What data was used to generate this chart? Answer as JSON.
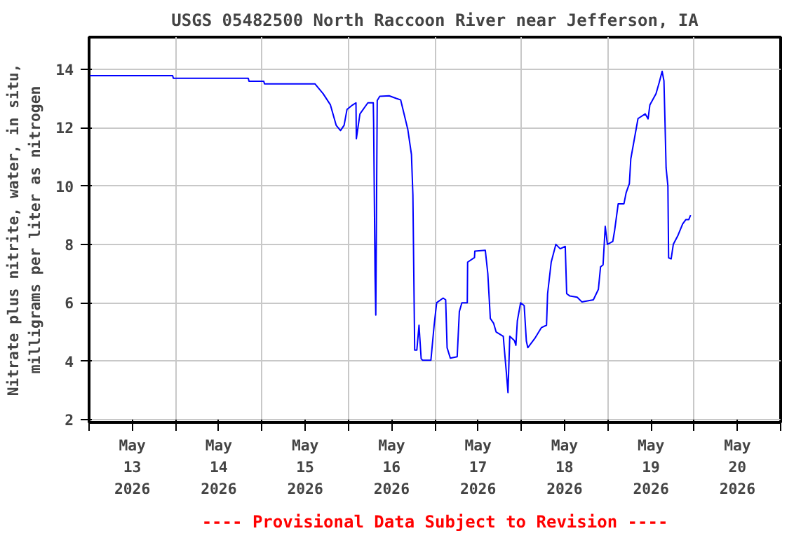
{
  "chart_data": {
    "type": "line",
    "title": "USGS 05482500 North Raccoon River near Jefferson, IA",
    "ylabel": "Nitrate plus nitrite, water, in situ,\nmilligrams per liter as nitrogen",
    "annotations": [
      "---- Provisional Data Subject to Revision ----"
    ],
    "xlim": [
      "2026-05-13T00:00",
      "2026-05-21T00:00"
    ],
    "ylim": [
      1.9,
      15.1
    ],
    "xticks": [
      {
        "value": "2026-05-13T00:00",
        "label": null
      },
      {
        "value": "2026-05-14T00:00",
        "label": null
      },
      {
        "value": "2026-05-15T00:00",
        "label": null
      },
      {
        "value": "2026-05-16T00:00",
        "label": null
      },
      {
        "value": "2026-05-17T00:00",
        "label": null
      },
      {
        "value": "2026-05-18T00:00",
        "label": null
      },
      {
        "value": "2026-05-19T00:00",
        "label": null
      },
      {
        "value": "2026-05-20T00:00",
        "label": null
      },
      {
        "value": "2026-05-21T00:00",
        "label": null
      },
      {
        "value": "2026-05-13T12:00",
        "label": "May\n13\n2026"
      },
      {
        "value": "2026-05-14T12:00",
        "label": "May\n14\n2026"
      },
      {
        "value": "2026-05-15T12:00",
        "label": "May\n15\n2026"
      },
      {
        "value": "2026-05-16T12:00",
        "label": "May\n16\n2026"
      },
      {
        "value": "2026-05-17T12:00",
        "label": "May\n17\n2026"
      },
      {
        "value": "2026-05-18T12:00",
        "label": "May\n18\n2026"
      },
      {
        "value": "2026-05-19T12:00",
        "label": "May\n19\n2026"
      },
      {
        "value": "2026-05-20T12:00",
        "label": "May\n20\n2026"
      }
    ],
    "yticks": [
      2,
      4,
      6,
      8,
      10,
      12,
      14
    ],
    "grid": true,
    "marker": "none",
    "line_style": "solid",
    "series": [
      {
        "color": "#0000ff",
        "x": [
          "2026-05-13T00:15",
          "2026-05-13T23:12",
          "2026-05-13T23:24",
          "2026-05-14T20:12",
          "2026-05-14T20:24",
          "2026-05-15T00:30",
          "2026-05-15T00:42",
          "2026-05-15T14:42",
          "2026-05-15T17:00",
          "2026-05-15T19:00",
          "2026-05-15T20:36",
          "2026-05-15T21:48",
          "2026-05-15T22:48",
          "2026-05-15T23:36",
          "2026-05-16T01:06",
          "2026-05-16T02:06",
          "2026-05-16T02:12",
          "2026-05-16T03:12",
          "2026-05-16T05:24",
          "2026-05-16T06:54",
          "2026-05-16T07:00",
          "2026-05-16T07:24",
          "2026-05-16T07:36",
          "2026-05-16T08:00",
          "2026-05-16T08:42",
          "2026-05-16T11:18",
          "2026-05-16T13:18",
          "2026-05-16T14:30",
          "2026-05-16T16:30",
          "2026-05-16T17:30",
          "2026-05-16T17:54",
          "2026-05-16T18:24",
          "2026-05-16T19:00",
          "2026-05-16T19:36",
          "2026-05-16T20:12",
          "2026-05-16T20:36",
          "2026-05-16T22:54",
          "2026-05-16T23:48",
          "2026-05-17T00:30",
          "2026-05-17T02:18",
          "2026-05-17T03:00",
          "2026-05-17T03:24",
          "2026-05-17T04:18",
          "2026-05-17T06:12",
          "2026-05-17T06:48",
          "2026-05-17T07:30",
          "2026-05-17T09:00",
          "2026-05-17T09:06",
          "2026-05-17T11:00",
          "2026-05-17T11:06",
          "2026-05-17T14:00",
          "2026-05-17T14:42",
          "2026-05-17T15:24",
          "2026-05-17T16:18",
          "2026-05-17T17:00",
          "2026-05-17T19:00",
          "2026-05-17T19:12",
          "2026-05-17T19:54",
          "2026-05-17T20:18",
          "2026-05-17T20:48",
          "2026-05-17T22:06",
          "2026-05-17T22:30",
          "2026-05-17T22:54",
          "2026-05-17T23:48",
          "2026-05-18T00:48",
          "2026-05-18T01:24",
          "2026-05-18T01:48",
          "2026-05-18T03:42",
          "2026-05-18T05:36",
          "2026-05-18T07:00",
          "2026-05-18T07:18",
          "2026-05-18T08:18",
          "2026-05-18T09:36",
          "2026-05-18T10:48",
          "2026-05-18T12:12",
          "2026-05-18T12:36",
          "2026-05-18T13:30",
          "2026-05-18T15:30",
          "2026-05-18T16:48",
          "2026-05-18T20:00",
          "2026-05-18T21:24",
          "2026-05-18T22:00",
          "2026-05-18T22:42",
          "2026-05-18T23:18",
          "2026-05-18T23:54",
          "2026-05-19T01:24",
          "2026-05-19T01:54",
          "2026-05-19T02:54",
          "2026-05-19T04:30",
          "2026-05-19T05:06",
          "2026-05-19T06:00",
          "2026-05-19T06:24",
          "2026-05-19T07:24",
          "2026-05-19T08:24",
          "2026-05-19T10:24",
          "2026-05-19T11:12",
          "2026-05-19T11:42",
          "2026-05-19T13:24",
          "2026-05-19T14:18",
          "2026-05-19T15:06",
          "2026-05-19T15:36",
          "2026-05-19T15:54",
          "2026-05-19T16:12",
          "2026-05-19T16:42",
          "2026-05-19T16:54",
          "2026-05-19T17:36",
          "2026-05-19T18:12",
          "2026-05-19T19:30",
          "2026-05-19T20:48",
          "2026-05-19T21:42",
          "2026-05-19T22:30",
          "2026-05-19T23:00"
        ],
        "values": [
          13.78,
          13.78,
          13.69,
          13.69,
          13.59,
          13.59,
          13.5,
          13.5,
          13.16,
          12.78,
          12.08,
          11.9,
          12.08,
          12.62,
          12.77,
          12.85,
          11.62,
          12.47,
          12.85,
          12.85,
          12.19,
          6.92,
          5.58,
          12.93,
          13.07,
          13.09,
          13.0,
          12.95,
          11.93,
          11.08,
          9.7,
          4.38,
          4.38,
          5.23,
          4.08,
          4.03,
          4.03,
          5.23,
          6.0,
          6.16,
          6.1,
          4.46,
          4.1,
          4.15,
          5.7,
          6.0,
          6.0,
          7.39,
          7.55,
          7.77,
          7.8,
          7.0,
          5.46,
          5.3,
          5.0,
          4.85,
          4.54,
          3.54,
          2.92,
          4.85,
          4.7,
          4.54,
          5.38,
          6.0,
          5.9,
          4.69,
          4.46,
          4.77,
          5.15,
          5.23,
          6.31,
          7.39,
          8.0,
          7.85,
          7.93,
          6.31,
          6.23,
          6.19,
          6.03,
          6.1,
          6.46,
          7.23,
          7.3,
          8.62,
          8.0,
          8.1,
          8.47,
          9.39,
          9.39,
          9.77,
          10.08,
          10.93,
          11.62,
          12.31,
          12.47,
          12.3,
          12.78,
          13.16,
          13.55,
          13.93,
          13.6,
          12.16,
          10.62,
          10.0,
          7.54,
          7.5,
          8.0,
          8.31,
          8.7,
          8.85,
          8.85,
          9.0
        ]
      }
    ]
  }
}
